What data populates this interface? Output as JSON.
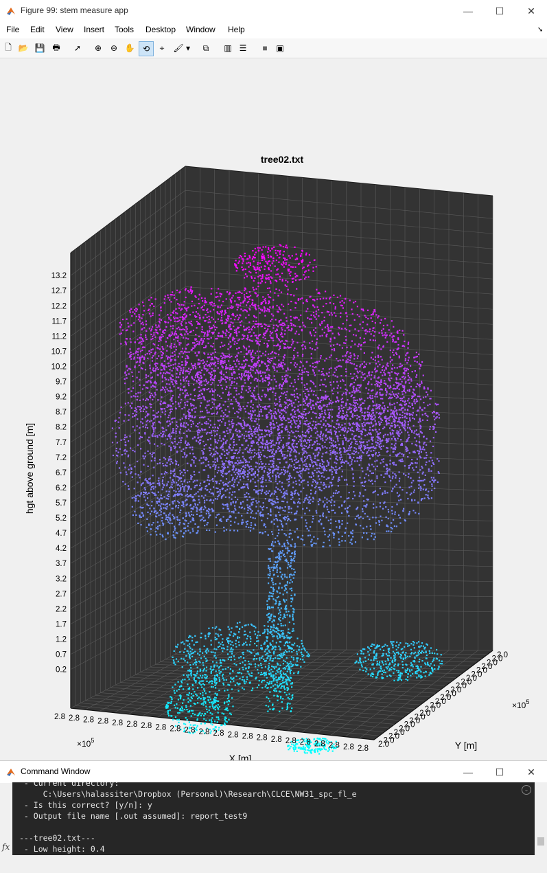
{
  "window": {
    "title": "Figure 99: stem measure app",
    "minimize": "—",
    "maximize": "☐",
    "close": "✕"
  },
  "menu": [
    "File",
    "Edit",
    "View",
    "Insert",
    "Tools",
    "Desktop",
    "Window",
    "Help"
  ],
  "toolbar": {
    "buttons": [
      {
        "name": "new-figure-icon",
        "glyph": "🗋"
      },
      {
        "name": "open-file-icon",
        "glyph": "📂"
      },
      {
        "name": "save-icon",
        "glyph": "💾"
      },
      {
        "name": "print-icon",
        "glyph": "🖶"
      },
      {
        "name": "pointer-icon",
        "glyph": "➚"
      },
      {
        "name": "zoom-in-icon",
        "glyph": "⊕"
      },
      {
        "name": "zoom-out-icon",
        "glyph": "⊖"
      },
      {
        "name": "pan-icon",
        "glyph": "✋"
      },
      {
        "name": "rotate-3d-icon",
        "glyph": "⟲"
      },
      {
        "name": "data-cursor-icon",
        "glyph": "⌖"
      },
      {
        "name": "brush-icon",
        "glyph": "🖌"
      },
      {
        "name": "brush-dropdown-icon",
        "glyph": "▾"
      },
      {
        "name": "link-plot-icon",
        "glyph": "⧉"
      },
      {
        "name": "colorbar-icon",
        "glyph": "▥"
      },
      {
        "name": "legend-icon",
        "glyph": "☰"
      },
      {
        "name": "hide-tools-icon",
        "glyph": "■"
      },
      {
        "name": "dock-figure-icon",
        "glyph": "▣"
      }
    ]
  },
  "chart_data": {
    "type": "scatter",
    "title": "tree02.txt",
    "xlabel": "X [m]",
    "ylabel": "Y [m]",
    "zlabel": "hgt above ground [m]",
    "z_ticks": [
      "0.2",
      "0.7",
      "1.2",
      "1.7",
      "2.2",
      "2.7",
      "3.2",
      "3.7",
      "4.2",
      "4.7",
      "5.2",
      "5.7",
      "6.2",
      "6.7",
      "7.2",
      "7.7",
      "8.2",
      "8.7",
      "9.2",
      "9.7",
      "10.2",
      "10.7",
      "11.2",
      "11.7",
      "12.2",
      "12.7",
      "13.2"
    ],
    "x_ticks": [
      "2.8",
      "2.8",
      "2.8",
      "2.8",
      "2.8",
      "2.8",
      "2.8",
      "2.8",
      "2.8",
      "2.8",
      "2.8",
      "2.8",
      "2.8",
      "2.8",
      "2.8",
      "2.8",
      "2.8",
      "2.8",
      "2.8",
      "2.8",
      "2.8",
      "2.8"
    ],
    "y_ticks": [
      "2.0",
      "2.0",
      "2.0",
      "2.0",
      "2.0",
      "2.0",
      "2.0",
      "2.0",
      "2.0",
      "2.0",
      "2.0",
      "2.0",
      "2.0",
      "2.0",
      "2.0",
      "2.0",
      "2.0",
      "2.0",
      "2.0",
      "2.0",
      "2.0",
      "2.0",
      "2.0",
      "2.0"
    ],
    "x_exponent": "×10",
    "x_exponent_power": "5",
    "y_exponent": "×10",
    "y_exponent_power": "5",
    "colormap": [
      "#00ffff",
      "#ff00ff"
    ],
    "background": "#333333",
    "grid": true
  },
  "command_window": {
    "title": "Command Window",
    "lines": [
      " - Current directory:",
      "     C:\\Users\\halassiter\\Dropbox (Personal)\\Research\\CLCE\\NW31_spc_fl_e",
      " - Is this correct? [y/n]: y",
      " - Output file name [.out assumed]: report_test9",
      "",
      "---tree02.txt---",
      " - Low height: 0.4"
    ],
    "prompt_icon": "fx"
  }
}
